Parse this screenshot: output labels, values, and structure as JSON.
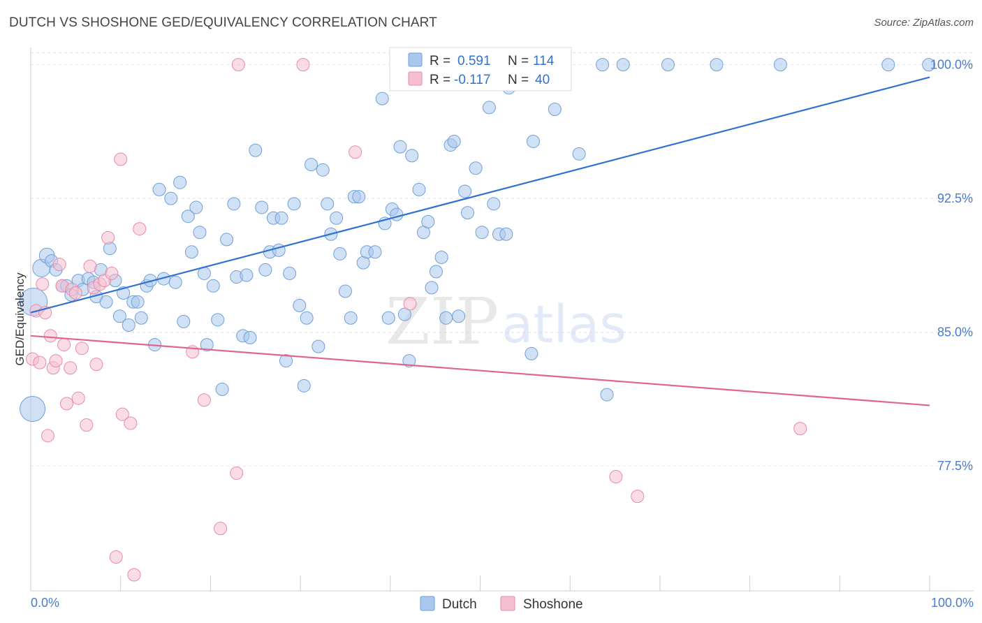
{
  "header": {
    "title": "DUTCH VS SHOSHONE GED/EQUIVALENCY CORRELATION CHART",
    "source": "Source: ZipAtlas.com"
  },
  "watermark": {
    "zip": "ZIP",
    "atlas": "atlas"
  },
  "colors": {
    "dutch_fill": "#aac8ec",
    "dutch_stroke": "#6f9fd8",
    "dutch_line": "#2f72cf",
    "shoshone_fill": "#f6bfd0",
    "shoshone_stroke": "#e98aa8",
    "shoshone_line": "#e0648e",
    "grid": "#dde3ea",
    "tick_text": "#4a7cc7"
  },
  "stats": {
    "dutch": {
      "r_label": "R = ",
      "r_value": "0.591",
      "n_label": "N = ",
      "n_value": "114"
    },
    "shoshone": {
      "r_label": "R = ",
      "r_value": "-0.117",
      "n_label": "N = ",
      "n_value": "40"
    }
  },
  "chart_data": {
    "type": "scatter",
    "ylabel": "GED/Equivalency",
    "xlabel": "",
    "x_tick_labels": [
      "0.0%",
      "100.0%"
    ],
    "y_tick_labels": [
      "100.0%",
      "92.5%",
      "85.0%",
      "77.5%"
    ],
    "y_ticks": [
      100.0,
      92.5,
      85.0,
      77.5
    ],
    "xlim": [
      0,
      100
    ],
    "ylim": [
      70.5,
      101.2
    ],
    "grid": true,
    "legend": "bottom-center",
    "series": [
      {
        "name": "Dutch",
        "trend": {
          "x": [
            0,
            100
          ],
          "y": [
            86.1,
            99.3
          ]
        },
        "points": [
          [
            0.3,
            86.7,
            22
          ],
          [
            0.2,
            80.7,
            20
          ],
          [
            1.2,
            88.6,
            14
          ],
          [
            1.8,
            89.3,
            12
          ],
          [
            2.3,
            89.0,
            10
          ],
          [
            2.8,
            88.5,
            10
          ],
          [
            3.5,
            87.6,
            10
          ],
          [
            4.0,
            87.6,
            10
          ],
          [
            4.5,
            87.1,
            10
          ],
          [
            5.3,
            87.9,
            10
          ],
          [
            5.8,
            87.4,
            10
          ],
          [
            6.4,
            88.0,
            10
          ],
          [
            7.0,
            87.8,
            10
          ],
          [
            7.3,
            87.0,
            10
          ],
          [
            7.8,
            88.5,
            10
          ],
          [
            8.4,
            86.7,
            10
          ],
          [
            8.8,
            89.7,
            10
          ],
          [
            9.4,
            87.9,
            10
          ],
          [
            9.9,
            85.9,
            10
          ],
          [
            10.3,
            87.2,
            10
          ],
          [
            10.9,
            85.4,
            10
          ],
          [
            11.4,
            86.7,
            10
          ],
          [
            11.9,
            86.7,
            10
          ],
          [
            12.3,
            85.8,
            10
          ],
          [
            12.9,
            87.6,
            10
          ],
          [
            13.3,
            87.9,
            10
          ],
          [
            13.8,
            84.3,
            10
          ],
          [
            14.3,
            93.0,
            10
          ],
          [
            14.8,
            88.0,
            10
          ],
          [
            15.6,
            92.5,
            10
          ],
          [
            16.1,
            87.8,
            10
          ],
          [
            16.6,
            93.4,
            10
          ],
          [
            17.0,
            85.6,
            10
          ],
          [
            17.5,
            91.5,
            10
          ],
          [
            17.9,
            89.5,
            10
          ],
          [
            18.4,
            92.0,
            10
          ],
          [
            18.8,
            90.6,
            10
          ],
          [
            19.3,
            88.3,
            10
          ],
          [
            19.6,
            84.3,
            10
          ],
          [
            20.3,
            87.6,
            10
          ],
          [
            20.8,
            85.7,
            10
          ],
          [
            21.3,
            81.8,
            10
          ],
          [
            21.8,
            90.2,
            10
          ],
          [
            22.6,
            92.2,
            10
          ],
          [
            22.9,
            88.1,
            10
          ],
          [
            23.6,
            84.8,
            10
          ],
          [
            24.0,
            88.2,
            10
          ],
          [
            24.4,
            84.7,
            10
          ],
          [
            25.0,
            95.2,
            10
          ],
          [
            25.7,
            92.0,
            10
          ],
          [
            26.1,
            88.5,
            10
          ],
          [
            26.6,
            89.5,
            10
          ],
          [
            27.0,
            91.4,
            10
          ],
          [
            27.6,
            89.6,
            10
          ],
          [
            27.9,
            91.4,
            10
          ],
          [
            28.4,
            83.4,
            10
          ],
          [
            28.8,
            88.3,
            10
          ],
          [
            29.3,
            92.2,
            10
          ],
          [
            29.9,
            86.5,
            10
          ],
          [
            30.4,
            82.0,
            10
          ],
          [
            30.7,
            85.8,
            10
          ],
          [
            31.2,
            94.4,
            10
          ],
          [
            32.0,
            84.2,
            10
          ],
          [
            32.5,
            94.1,
            10
          ],
          [
            33.0,
            92.2,
            10
          ],
          [
            33.4,
            90.5,
            10
          ],
          [
            34.0,
            91.4,
            10
          ],
          [
            34.4,
            89.4,
            10
          ],
          [
            35.0,
            87.3,
            10
          ],
          [
            35.6,
            85.8,
            10
          ],
          [
            36.0,
            92.6,
            10
          ],
          [
            36.5,
            92.6,
            10
          ],
          [
            37.0,
            88.9,
            10
          ],
          [
            37.4,
            89.5,
            10
          ],
          [
            38.3,
            89.5,
            10
          ],
          [
            39.1,
            98.1,
            10
          ],
          [
            39.4,
            91.1,
            10
          ],
          [
            39.8,
            85.8,
            10
          ],
          [
            40.2,
            91.9,
            10
          ],
          [
            40.7,
            91.6,
            10
          ],
          [
            41.1,
            95.4,
            10
          ],
          [
            41.6,
            86.0,
            10
          ],
          [
            42.1,
            83.4,
            10
          ],
          [
            42.4,
            94.9,
            10
          ],
          [
            43.2,
            93.0,
            10
          ],
          [
            43.7,
            90.6,
            10
          ],
          [
            44.2,
            91.2,
            10
          ],
          [
            44.6,
            87.5,
            10
          ],
          [
            45.1,
            88.4,
            10
          ],
          [
            45.7,
            89.2,
            10
          ],
          [
            46.2,
            85.8,
            10
          ],
          [
            46.7,
            95.5,
            10
          ],
          [
            47.1,
            95.7,
            10
          ],
          [
            47.6,
            85.9,
            10
          ],
          [
            48.3,
            92.9,
            10
          ],
          [
            48.6,
            91.7,
            10
          ],
          [
            49.5,
            94.2,
            10
          ],
          [
            50.2,
            90.6,
            10
          ],
          [
            51.0,
            97.6,
            10
          ],
          [
            51.5,
            92.2,
            10
          ],
          [
            52.1,
            90.5,
            10
          ],
          [
            52.9,
            90.5,
            10
          ],
          [
            53.2,
            98.7,
            10
          ],
          [
            55.7,
            83.8,
            10
          ],
          [
            55.9,
            95.7,
            10
          ],
          [
            58.3,
            97.5,
            10
          ],
          [
            61.0,
            95.0,
            10
          ],
          [
            63.6,
            100.0,
            10
          ],
          [
            65.9,
            100.0,
            10
          ],
          [
            70.9,
            100.0,
            10
          ],
          [
            76.3,
            100.0,
            10
          ],
          [
            83.4,
            100.0,
            10
          ],
          [
            95.4,
            100.0,
            10
          ],
          [
            99.9,
            100.0,
            10
          ],
          [
            64.1,
            81.5,
            10
          ]
        ]
      },
      {
        "name": "Shoshone",
        "trend": {
          "x": [
            0,
            100
          ],
          "y": [
            84.8,
            80.9
          ]
        },
        "points": [
          [
            0.2,
            83.5,
            10
          ],
          [
            0.6,
            86.2,
            10
          ],
          [
            1.0,
            83.3,
            10
          ],
          [
            1.3,
            87.7,
            10
          ],
          [
            1.6,
            86.1,
            10
          ],
          [
            1.9,
            79.2,
            10
          ],
          [
            2.2,
            84.8,
            10
          ],
          [
            2.5,
            83.0,
            10
          ],
          [
            2.8,
            83.4,
            10
          ],
          [
            3.2,
            88.8,
            10
          ],
          [
            3.5,
            87.6,
            10
          ],
          [
            3.7,
            84.3,
            10
          ],
          [
            4.0,
            81.0,
            10
          ],
          [
            4.4,
            83.0,
            10
          ],
          [
            4.6,
            87.4,
            10
          ],
          [
            5.0,
            87.2,
            10
          ],
          [
            5.3,
            81.3,
            10
          ],
          [
            5.7,
            84.1,
            10
          ],
          [
            6.2,
            79.8,
            10
          ],
          [
            6.6,
            88.7,
            10
          ],
          [
            7.0,
            87.5,
            10
          ],
          [
            7.3,
            83.2,
            10
          ],
          [
            7.7,
            87.7,
            10
          ],
          [
            8.2,
            87.9,
            10
          ],
          [
            8.6,
            90.3,
            10
          ],
          [
            9.0,
            88.3,
            10
          ],
          [
            9.5,
            72.4,
            10
          ],
          [
            10.0,
            94.7,
            10
          ],
          [
            10.2,
            80.4,
            10
          ],
          [
            11.1,
            79.9,
            10
          ],
          [
            11.5,
            71.4,
            10
          ],
          [
            12.1,
            90.8,
            10
          ],
          [
            18.0,
            83.9,
            10
          ],
          [
            19.3,
            81.2,
            10
          ],
          [
            21.1,
            74.0,
            10
          ],
          [
            22.9,
            77.1,
            10
          ],
          [
            23.1,
            100.0,
            10
          ],
          [
            30.3,
            100.0,
            10
          ],
          [
            36.1,
            95.1,
            10
          ],
          [
            42.2,
            86.6,
            10
          ],
          [
            65.1,
            76.9,
            10
          ],
          [
            67.5,
            75.8,
            10
          ],
          [
            85.6,
            79.6,
            10
          ]
        ]
      }
    ]
  }
}
